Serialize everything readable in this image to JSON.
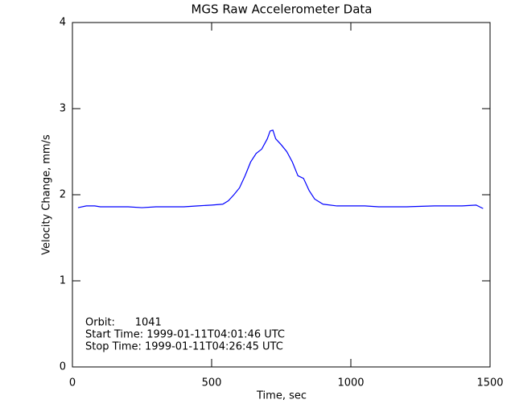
{
  "chart_data": {
    "type": "line",
    "title": "MGS Raw Accelerometer Data",
    "x_label": "Time, sec",
    "y_label": "Velocity Change, mm/s",
    "x": [
      20,
      50,
      80,
      100,
      150,
      200,
      250,
      300,
      350,
      400,
      450,
      500,
      540,
      560,
      580,
      600,
      620,
      640,
      660,
      680,
      700,
      710,
      720,
      730,
      750,
      770,
      790,
      810,
      830,
      850,
      870,
      900,
      950,
      1000,
      1050,
      1100,
      1200,
      1300,
      1400,
      1450,
      1475
    ],
    "series": [
      {
        "color": "#0000ff",
        "values": [
          1.85,
          1.87,
          1.87,
          1.86,
          1.86,
          1.86,
          1.85,
          1.86,
          1.86,
          1.86,
          1.87,
          1.88,
          1.89,
          1.93,
          2.0,
          2.08,
          2.22,
          2.38,
          2.48,
          2.53,
          2.65,
          2.74,
          2.75,
          2.65,
          2.58,
          2.5,
          2.38,
          2.22,
          2.19,
          2.05,
          1.95,
          1.89,
          1.87,
          1.87,
          1.87,
          1.86,
          1.86,
          1.87,
          1.87,
          1.88,
          1.84
        ]
      }
    ],
    "xlim": [
      0,
      1500
    ],
    "xticks": [
      0,
      500,
      1000,
      1500
    ],
    "ylim": [
      0,
      4
    ],
    "yticks": [
      0,
      1,
      2,
      3,
      4
    ],
    "annotations": [
      "Orbit:      1041",
      "Start Time: 1999-01-11T04:01:46 UTC",
      "Stop Time: 1999-01-11T04:26:45 UTC"
    ]
  }
}
